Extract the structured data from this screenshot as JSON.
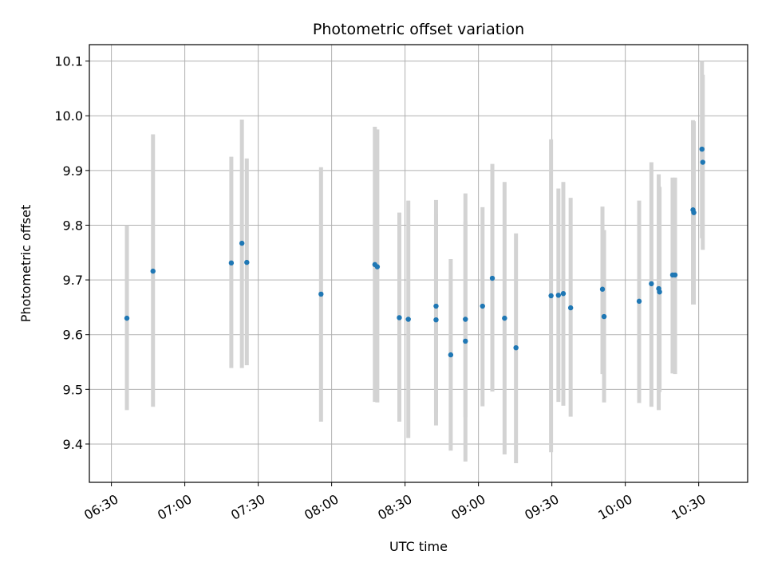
{
  "chart_data": {
    "type": "scatter",
    "title": "Photometric offset variation",
    "xlabel": "UTC time",
    "ylabel": "Photometric offset",
    "x_unit": "HH:MM UTC",
    "xlim": [
      "06:21",
      "10:50"
    ],
    "ylim": [
      9.33,
      10.13
    ],
    "grid": true,
    "x_ticks": [
      "06:30",
      "07:00",
      "07:30",
      "08:00",
      "08:30",
      "09:00",
      "09:30",
      "10:00",
      "10:30"
    ],
    "y_ticks": [
      9.4,
      9.5,
      9.6,
      9.7,
      9.8,
      9.9,
      10.0,
      10.1
    ],
    "y_tick_labels": [
      "9.4",
      "9.5",
      "9.6",
      "9.7",
      "9.8",
      "9.9",
      "10.0",
      "10.1"
    ],
    "series": [
      {
        "color": "#1f77b4",
        "errorbar_color": "#d3d3d3",
        "points": [
          {
            "x": "06:36:20",
            "y": 9.63,
            "lo": 9.462,
            "hi": 9.8
          },
          {
            "x": "06:47:00",
            "y": 9.716,
            "lo": 9.468,
            "hi": 9.966
          },
          {
            "x": "07:19:00",
            "y": 9.731,
            "lo": 9.539,
            "hi": 9.925
          },
          {
            "x": "07:23:20",
            "y": 9.767,
            "lo": 9.539,
            "hi": 9.993
          },
          {
            "x": "07:25:20",
            "y": 9.732,
            "lo": 9.544,
            "hi": 9.922
          },
          {
            "x": "07:55:40",
            "y": 9.674,
            "lo": 9.441,
            "hi": 9.906
          },
          {
            "x": "08:17:40",
            "y": 9.728,
            "lo": 9.477,
            "hi": 9.98
          },
          {
            "x": "08:18:40",
            "y": 9.724,
            "lo": 9.476,
            "hi": 9.975
          },
          {
            "x": "08:27:40",
            "y": 9.631,
            "lo": 9.441,
            "hi": 9.823
          },
          {
            "x": "08:31:20",
            "y": 9.628,
            "lo": 9.411,
            "hi": 9.845
          },
          {
            "x": "08:42:40",
            "y": 9.652,
            "lo": 9.457,
            "hi": 9.846
          },
          {
            "x": "08:42:40",
            "y": 9.627,
            "lo": 9.434,
            "hi": 9.82
          },
          {
            "x": "08:48:40",
            "y": 9.563,
            "lo": 9.388,
            "hi": 9.738
          },
          {
            "x": "08:54:40",
            "y": 9.628,
            "lo": 9.449,
            "hi": 9.807
          },
          {
            "x": "08:54:40",
            "y": 9.588,
            "lo": 9.368,
            "hi": 9.858
          },
          {
            "x": "09:01:40",
            "y": 9.652,
            "lo": 9.469,
            "hi": 9.833
          },
          {
            "x": "09:05:40",
            "y": 9.703,
            "lo": 9.496,
            "hi": 9.912
          },
          {
            "x": "09:10:40",
            "y": 9.63,
            "lo": 9.381,
            "hi": 9.879
          },
          {
            "x": "09:15:20",
            "y": 9.576,
            "lo": 9.365,
            "hi": 9.785
          },
          {
            "x": "09:29:40",
            "y": 9.671,
            "lo": 9.385,
            "hi": 9.957
          },
          {
            "x": "09:32:40",
            "y": 9.672,
            "lo": 9.477,
            "hi": 9.867
          },
          {
            "x": "09:34:40",
            "y": 9.675,
            "lo": 9.47,
            "hi": 9.879
          },
          {
            "x": "09:37:40",
            "y": 9.649,
            "lo": 9.45,
            "hi": 9.85
          },
          {
            "x": "09:50:40",
            "y": 9.683,
            "lo": 9.528,
            "hi": 9.834
          },
          {
            "x": "09:51:20",
            "y": 9.633,
            "lo": 9.476,
            "hi": 9.791
          },
          {
            "x": "10:05:40",
            "y": 9.661,
            "lo": 9.475,
            "hi": 9.845
          },
          {
            "x": "10:10:40",
            "y": 9.693,
            "lo": 9.468,
            "hi": 9.915
          },
          {
            "x": "10:13:40",
            "y": 9.684,
            "lo": 9.462,
            "hi": 9.893
          },
          {
            "x": "10:14:00",
            "y": 9.678,
            "lo": 9.495,
            "hi": 9.87
          },
          {
            "x": "10:19:20",
            "y": 9.709,
            "lo": 9.529,
            "hi": 9.887
          },
          {
            "x": "10:20:20",
            "y": 9.709,
            "lo": 9.528,
            "hi": 9.887
          },
          {
            "x": "10:27:40",
            "y": 9.828,
            "lo": 9.655,
            "hi": 9.992
          },
          {
            "x": "10:28:00",
            "y": 9.823,
            "lo": 9.655,
            "hi": 9.99
          },
          {
            "x": "10:31:20",
            "y": 9.939,
            "lo": 9.776,
            "hi": 10.1
          },
          {
            "x": "10:31:40",
            "y": 9.915,
            "lo": 9.755,
            "hi": 10.075
          }
        ]
      }
    ]
  }
}
